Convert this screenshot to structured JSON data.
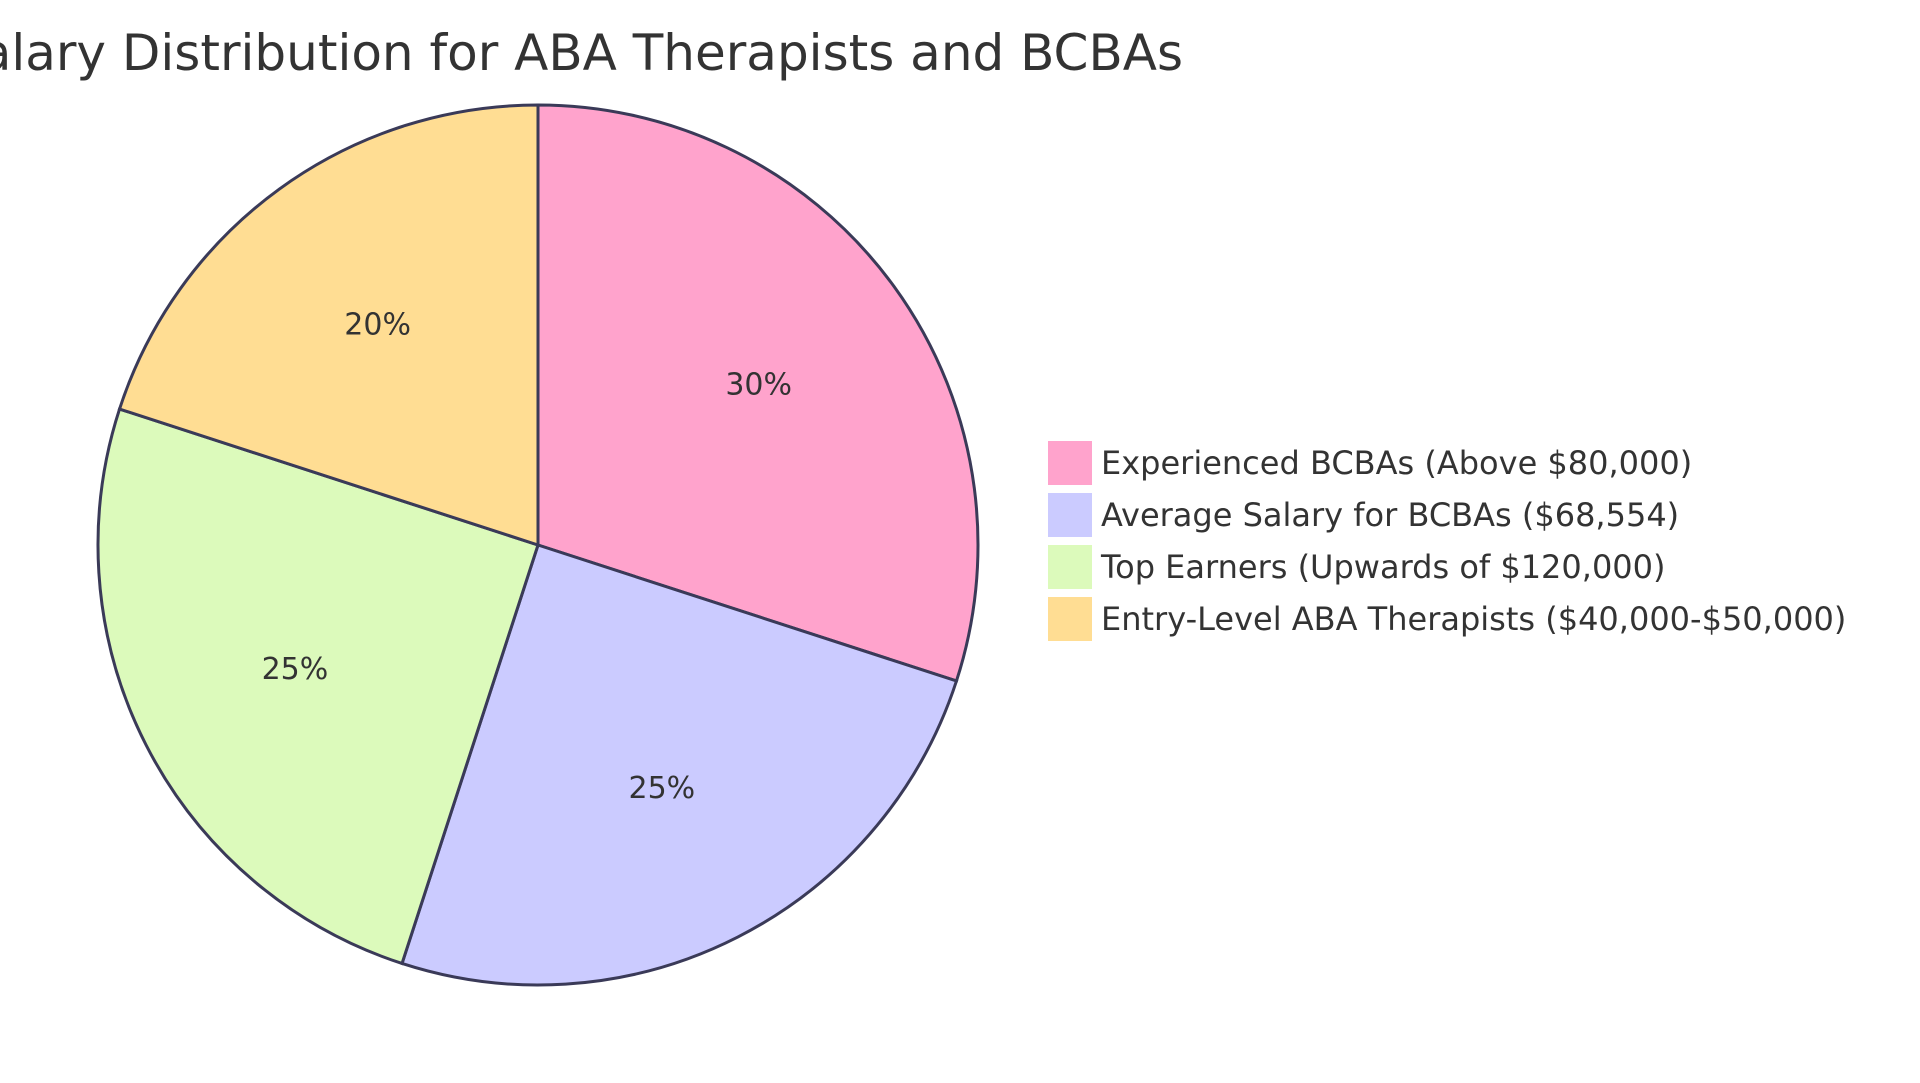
{
  "chart_data": {
    "type": "pie",
    "title": "Salary Distribution for ABA Therapists and BCBAs",
    "slices": [
      {
        "label": "Experienced BCBAs (Above $80,000)",
        "value": 30,
        "display": "30%",
        "color": "#ffa3cc"
      },
      {
        "label": "Average Salary for BCBAs ($68,554)",
        "value": 25,
        "display": "25%",
        "color": "#cbcbff"
      },
      {
        "label": "Top Earners (Upwards of $120,000)",
        "value": 25,
        "display": "25%",
        "color": "#dcfabb"
      },
      {
        "label": "Entry-Level ABA Therapists ($40,000-$50,000)",
        "value": 20,
        "display": "20%",
        "color": "#ffdd93"
      }
    ],
    "legend_placement": "right",
    "stroke_color": "#3a3a58"
  }
}
